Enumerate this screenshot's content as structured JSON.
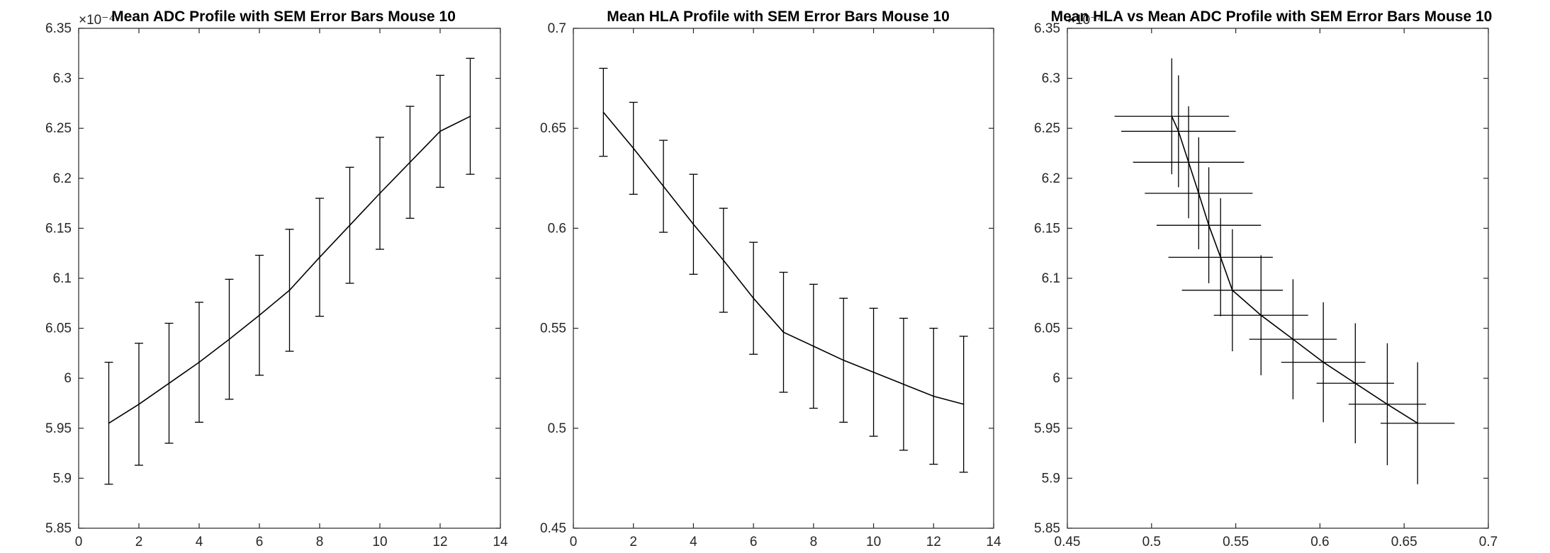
{
  "chart_data": [
    {
      "type": "line",
      "title": "Mean ADC Profile with SEM Error Bars Mouse 10",
      "xlabel": "",
      "ylabel": "",
      "xlim": [
        0,
        14
      ],
      "ylim": [
        5.85,
        6.35
      ],
      "y_exponent": "×10⁻⁴",
      "xticks": [
        0,
        2,
        4,
        6,
        8,
        10,
        12,
        14
      ],
      "yticks": [
        5.85,
        5.9,
        5.95,
        6,
        6.05,
        6.1,
        6.15,
        6.2,
        6.25,
        6.3,
        6.35
      ],
      "error_bars": "vertical",
      "x": [
        1,
        2,
        3,
        4,
        5,
        6,
        7,
        8,
        9,
        10,
        11,
        12,
        13
      ],
      "y": [
        5.955,
        5.974,
        5.995,
        6.016,
        6.039,
        6.063,
        6.088,
        6.121,
        6.153,
        6.185,
        6.216,
        6.247,
        6.262
      ],
      "yerr": [
        0.061,
        0.061,
        0.06,
        0.06,
        0.06,
        0.06,
        0.061,
        0.059,
        0.058,
        0.056,
        0.056,
        0.056,
        0.058
      ],
      "grid": false
    },
    {
      "type": "line",
      "title": "Mean HLA Profile with SEM Error Bars Mouse 10",
      "xlabel": "",
      "ylabel": "",
      "xlim": [
        0,
        14
      ],
      "ylim": [
        0.45,
        0.7
      ],
      "xticks": [
        0,
        2,
        4,
        6,
        8,
        10,
        12,
        14
      ],
      "yticks": [
        0.45,
        0.5,
        0.55,
        0.6,
        0.65,
        0.7
      ],
      "error_bars": "vertical",
      "x": [
        1,
        2,
        3,
        4,
        5,
        6,
        7,
        8,
        9,
        10,
        11,
        12,
        13
      ],
      "y": [
        0.658,
        0.64,
        0.621,
        0.602,
        0.584,
        0.565,
        0.548,
        0.541,
        0.534,
        0.528,
        0.522,
        0.516,
        0.512
      ],
      "yerr": [
        0.022,
        0.023,
        0.023,
        0.025,
        0.026,
        0.028,
        0.03,
        0.031,
        0.031,
        0.032,
        0.033,
        0.034,
        0.034
      ],
      "grid": false
    },
    {
      "type": "line",
      "title": "Mean HLA vs Mean ADC Profile with SEM Error Bars Mouse 10",
      "xlabel": "",
      "ylabel": "",
      "xlim": [
        0.45,
        0.7
      ],
      "ylim": [
        5.85,
        6.35
      ],
      "y_exponent": "×10⁻⁴",
      "xticks": [
        0.45,
        0.5,
        0.55,
        0.6,
        0.65,
        0.7
      ],
      "yticks": [
        5.85,
        5.9,
        5.95,
        6,
        6.05,
        6.1,
        6.15,
        6.2,
        6.25,
        6.3,
        6.35
      ],
      "error_bars": "both",
      "x": [
        0.658,
        0.64,
        0.621,
        0.602,
        0.584,
        0.565,
        0.548,
        0.541,
        0.534,
        0.528,
        0.522,
        0.516,
        0.512
      ],
      "y": [
        5.955,
        5.974,
        5.995,
        6.016,
        6.039,
        6.063,
        6.088,
        6.121,
        6.153,
        6.185,
        6.216,
        6.247,
        6.262
      ],
      "xerr": [
        0.022,
        0.023,
        0.023,
        0.025,
        0.026,
        0.028,
        0.03,
        0.031,
        0.031,
        0.032,
        0.033,
        0.034,
        0.034
      ],
      "yerr": [
        0.061,
        0.061,
        0.06,
        0.06,
        0.06,
        0.06,
        0.061,
        0.059,
        0.058,
        0.056,
        0.056,
        0.056,
        0.058
      ],
      "grid": false
    }
  ]
}
